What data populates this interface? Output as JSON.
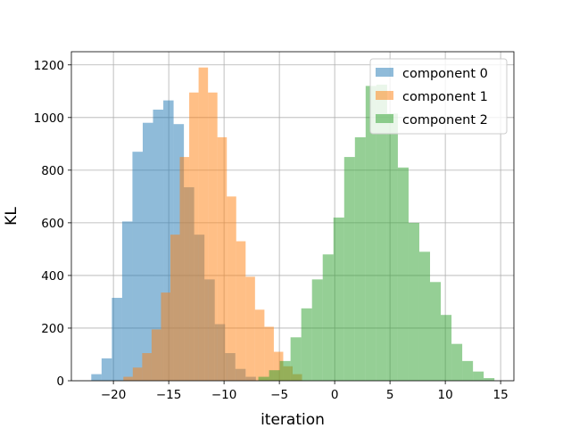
{
  "chart_data": {
    "type": "histogram",
    "xlabel": "iteration",
    "ylabel": "KL",
    "xlim": [
      -23.8,
      16.2
    ],
    "ylim": [
      0,
      1250
    ],
    "xticks": [
      -20,
      -15,
      -10,
      -5,
      0,
      5,
      10,
      15
    ],
    "xtick_labels": [
      "−20",
      "−15",
      "−10",
      "−5",
      "0",
      "5",
      "10",
      "15"
    ],
    "yticks": [
      0,
      200,
      400,
      600,
      800,
      1000,
      1200
    ],
    "ytick_labels": [
      "0",
      "200",
      "400",
      "600",
      "800",
      "1000",
      "1200"
    ],
    "grid": true,
    "legend_position": "top-right",
    "opacity": 0.5,
    "series": [
      {
        "name": "component 0",
        "color": "#1f77b4",
        "bin_width": 0.93,
        "bin_start": -22.0,
        "values": [
          25,
          85,
          315,
          605,
          870,
          980,
          1030,
          1065,
          975,
          735,
          555,
          385,
          215,
          105,
          45,
          15
        ]
      },
      {
        "name": "component 1",
        "color": "#ff7f0e",
        "bin_width": 0.85,
        "bin_start": -19.1,
        "values": [
          15,
          50,
          105,
          195,
          335,
          555,
          850,
          1095,
          1190,
          1095,
          925,
          700,
          530,
          395,
          270,
          205,
          110,
          55,
          25
        ]
      },
      {
        "name": "component 2",
        "color": "#2ca02c",
        "bin_width": 0.97,
        "bin_start": -6.9,
        "values": [
          15,
          40,
          75,
          165,
          275,
          385,
          480,
          620,
          850,
          925,
          1120,
          1125,
          1015,
          810,
          600,
          490,
          375,
          250,
          140,
          75,
          35,
          10
        ]
      }
    ]
  }
}
